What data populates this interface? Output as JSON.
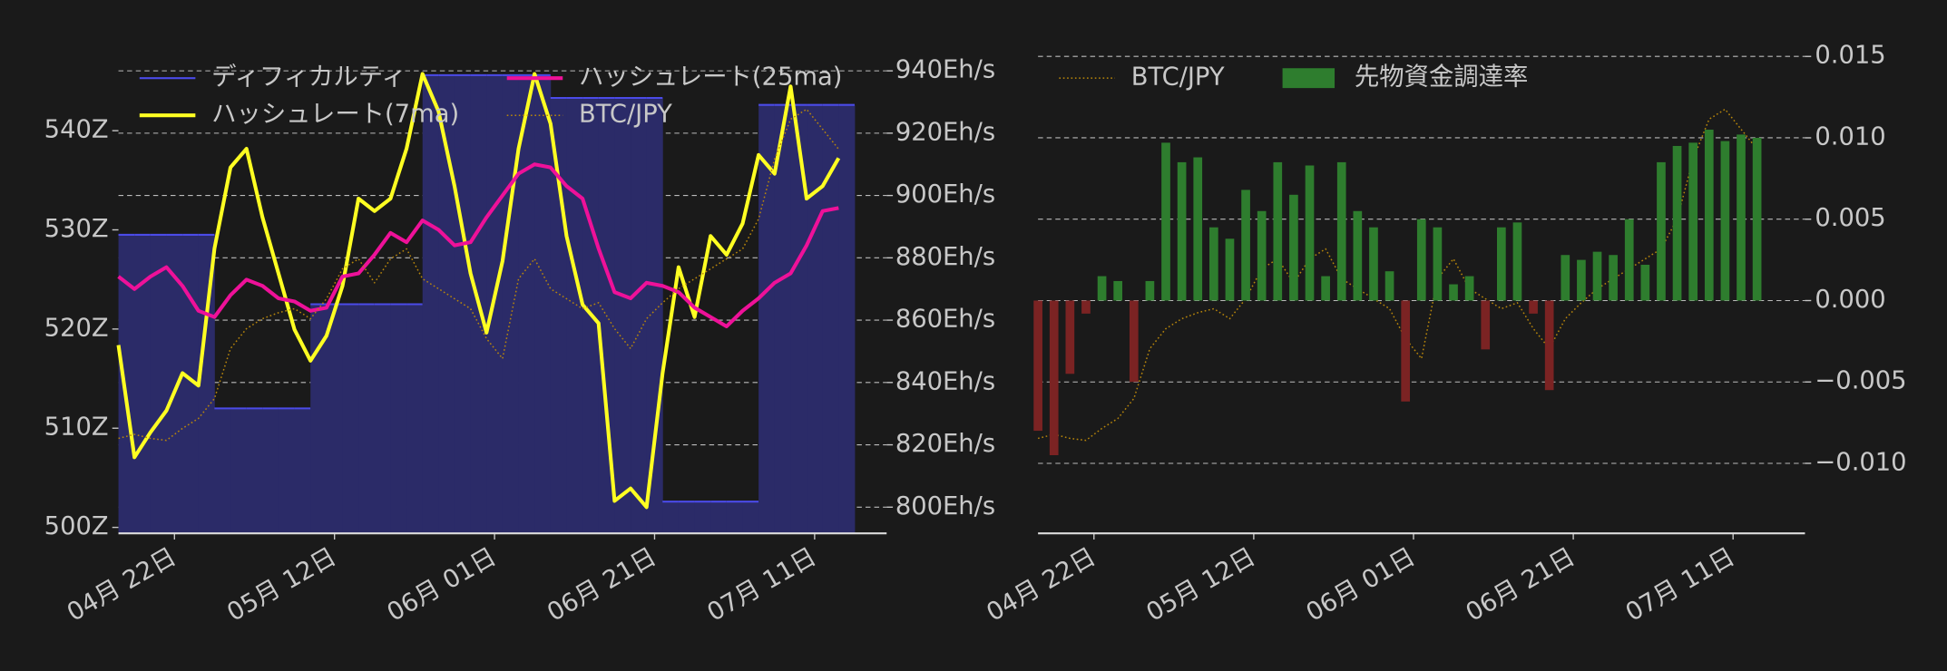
{
  "chart_data": [
    {
      "type": "line",
      "x": [
        "04-15",
        "04-17",
        "04-19",
        "04-21",
        "04-23",
        "04-25",
        "04-27",
        "04-29",
        "05-01",
        "05-03",
        "05-05",
        "05-07",
        "05-09",
        "05-11",
        "05-13",
        "05-15",
        "05-17",
        "05-19",
        "05-21",
        "05-23",
        "05-25",
        "05-27",
        "05-29",
        "05-31",
        "06-02",
        "06-04",
        "06-06",
        "06-08",
        "06-10",
        "06-12",
        "06-14",
        "06-16",
        "06-18",
        "06-20",
        "06-22",
        "06-24",
        "06-26",
        "06-28",
        "06-30",
        "07-02",
        "07-04",
        "07-06",
        "07-08",
        "07-10",
        "07-12",
        "07-14"
      ],
      "xlim": [
        "04-15",
        "07-20"
      ],
      "xticks": [
        {
          "value": "04-22",
          "label": "04月 22日"
        },
        {
          "value": "05-12",
          "label": "05月 12日"
        },
        {
          "value": "06-01",
          "label": "06月 01日"
        },
        {
          "value": "06-21",
          "label": "06月 21日"
        },
        {
          "value": "07-11",
          "label": "07月 11日"
        }
      ],
      "ylim": [
        499.4,
        548.8
      ],
      "yticks": [
        {
          "value": 500,
          "label": "500Z"
        },
        {
          "value": 510,
          "label": "510Z"
        },
        {
          "value": 520,
          "label": "520Z"
        },
        {
          "value": 530,
          "label": "530Z"
        },
        {
          "value": 540,
          "label": "540Z"
        }
      ],
      "y2lim": [
        791.6,
        948.8
      ],
      "y2ticks": [
        {
          "value": 800,
          "label": "800Eh/s"
        },
        {
          "value": 820,
          "label": "820Eh/s"
        },
        {
          "value": 840,
          "label": "840Eh/s"
        },
        {
          "value": 860,
          "label": "860Eh/s"
        },
        {
          "value": 880,
          "label": "880Eh/s"
        },
        {
          "value": 900,
          "label": "900Eh/s"
        },
        {
          "value": 920,
          "label": "920Eh/s"
        },
        {
          "value": 940,
          "label": "940Eh/s"
        }
      ],
      "y3lim": [
        9224000,
        11680000
      ],
      "grid": "y2",
      "series": [
        {
          "name": "ディフィカルティ",
          "type": "area",
          "axis": "y",
          "color": "#4b4be8",
          "fill": "#2b2b68",
          "values": [
            529.5,
            529.5,
            529.5,
            529.5,
            529.5,
            529.5,
            512,
            512,
            512,
            512,
            512,
            512,
            522.5,
            522.5,
            522.5,
            522.5,
            522.5,
            522.5,
            522.5,
            545.6,
            545.6,
            545.6,
            545.6,
            545.6,
            545.6,
            545.6,
            545.6,
            543.3,
            543.3,
            543.3,
            543.3,
            543.3,
            543.3,
            543.3,
            502.6,
            502.6,
            502.6,
            502.6,
            502.6,
            502.6,
            542.6,
            542.6,
            542.6,
            542.6,
            542.6,
            542.6
          ]
        },
        {
          "name": "ハッシュレート(7ma)",
          "axis": "y2",
          "color": "#ffff22",
          "linestyle": "solid",
          "values": [
            852,
            816,
            824,
            831,
            843,
            839,
            883,
            909,
            915,
            893,
            875,
            857,
            847,
            855,
            871,
            899,
            895,
            899,
            915,
            939,
            927,
            903,
            875,
            856,
            879,
            915,
            939,
            923,
            887,
            865,
            859,
            802,
            806,
            800,
            843,
            877,
            861,
            887,
            881,
            891,
            913,
            907,
            935,
            899,
            903,
            912
          ]
        },
        {
          "name": "ハッシュレート(25ma)",
          "axis": "y2",
          "color": "#ee1199",
          "linestyle": "solid",
          "values": [
            874,
            870,
            874,
            877,
            871,
            863,
            861,
            868,
            873,
            871,
            867,
            866,
            863,
            864,
            874,
            875,
            881,
            888,
            885,
            892,
            889,
            884,
            885,
            893,
            900,
            907,
            910,
            909,
            903,
            899,
            883,
            869,
            867,
            872,
            871,
            869,
            864,
            861,
            858,
            863,
            867,
            872,
            875,
            884,
            895,
            896
          ]
        },
        {
          "name": "BTC/JPY",
          "axis": "y3",
          "color": "#b8860b",
          "linestyle": "dotted",
          "values": [
            9700000,
            9720000,
            9700000,
            9690000,
            9750000,
            9800000,
            9900000,
            10150000,
            10250000,
            10300000,
            10330000,
            10350000,
            10300000,
            10400000,
            10550000,
            10600000,
            10480000,
            10600000,
            10650000,
            10500000,
            10450000,
            10400000,
            10350000,
            10200000,
            10100000,
            10500000,
            10600000,
            10450000,
            10400000,
            10350000,
            10380000,
            10250000,
            10150000,
            10300000,
            10380000,
            10450000,
            10500000,
            10550000,
            10600000,
            10650000,
            10800000,
            11100000,
            11300000,
            11350000,
            11250000,
            11150000
          ]
        }
      ]
    },
    {
      "type": "bar",
      "x": [
        "04-15",
        "04-17",
        "04-19",
        "04-21",
        "04-23",
        "04-25",
        "04-27",
        "04-29",
        "05-01",
        "05-03",
        "05-05",
        "05-07",
        "05-09",
        "05-11",
        "05-13",
        "05-15",
        "05-17",
        "05-19",
        "05-21",
        "05-23",
        "05-25",
        "05-27",
        "05-29",
        "05-31",
        "06-02",
        "06-04",
        "06-06",
        "06-08",
        "06-10",
        "06-12",
        "06-14",
        "06-16",
        "06-18",
        "06-20",
        "06-22",
        "06-24",
        "06-26",
        "06-28",
        "06-30",
        "07-02",
        "07-04",
        "07-06",
        "07-08",
        "07-10",
        "07-12",
        "07-14"
      ],
      "xlim": [
        "04-15",
        "07-20"
      ],
      "xticks": [
        {
          "value": "04-22",
          "label": "04月 22日"
        },
        {
          "value": "05-12",
          "label": "05月 12日"
        },
        {
          "value": "06-01",
          "label": "06月 01日"
        },
        {
          "value": "06-21",
          "label": "06月 21日"
        },
        {
          "value": "07-11",
          "label": "07月 11日"
        }
      ],
      "ylim": [
        -0.0143,
        0.0158
      ],
      "yticks": [
        {
          "value": -0.01,
          "label": "−0.010"
        },
        {
          "value": -0.005,
          "label": "−0.005"
        },
        {
          "value": 0,
          "label": "0.000"
        },
        {
          "value": 0.005,
          "label": "0.005"
        },
        {
          "value": 0.01,
          "label": "0.010"
        },
        {
          "value": 0.015,
          "label": "0.015"
        }
      ],
      "y_side": "right",
      "y3lim": [
        9224000,
        11680000
      ],
      "grid": "y",
      "series": [
        {
          "name": "BTC/JPY",
          "type": "line",
          "axis": "y3",
          "color": "#b8860b",
          "linestyle": "dotted",
          "values": [
            9700000,
            9720000,
            9700000,
            9690000,
            9750000,
            9800000,
            9900000,
            10150000,
            10250000,
            10300000,
            10330000,
            10350000,
            10300000,
            10400000,
            10550000,
            10600000,
            10480000,
            10600000,
            10650000,
            10500000,
            10450000,
            10400000,
            10350000,
            10200000,
            10100000,
            10500000,
            10600000,
            10450000,
            10400000,
            10350000,
            10380000,
            10250000,
            10150000,
            10300000,
            10380000,
            10450000,
            10500000,
            10550000,
            10600000,
            10650000,
            10800000,
            11100000,
            11300000,
            11350000,
            11250000,
            11150000
          ]
        },
        {
          "name": "先物資金調達率",
          "axis": "y",
          "color": "#2e7d2e",
          "negative_color": "#7b2323",
          "values": [
            -0.008,
            -0.0095,
            -0.0045,
            -0.0008,
            0.0015,
            0.0012,
            -0.005,
            0.0012,
            0.0097,
            0.0085,
            0.0088,
            0.0045,
            0.0038,
            0.0068,
            0.0055,
            0.0085,
            0.0065,
            0.0083,
            0.0015,
            0.0085,
            0.0055,
            0.0045,
            0.0018,
            -0.0062,
            0.005,
            0.0045,
            0.001,
            0.0015,
            -0.003,
            0.0045,
            0.0048,
            -0.0008,
            -0.0055,
            0.0028,
            0.0025,
            0.003,
            0.0028,
            0.005,
            0.0022,
            0.0085,
            0.0095,
            0.0097,
            0.0105,
            0.0098,
            0.0102,
            0.01
          ]
        }
      ]
    }
  ]
}
